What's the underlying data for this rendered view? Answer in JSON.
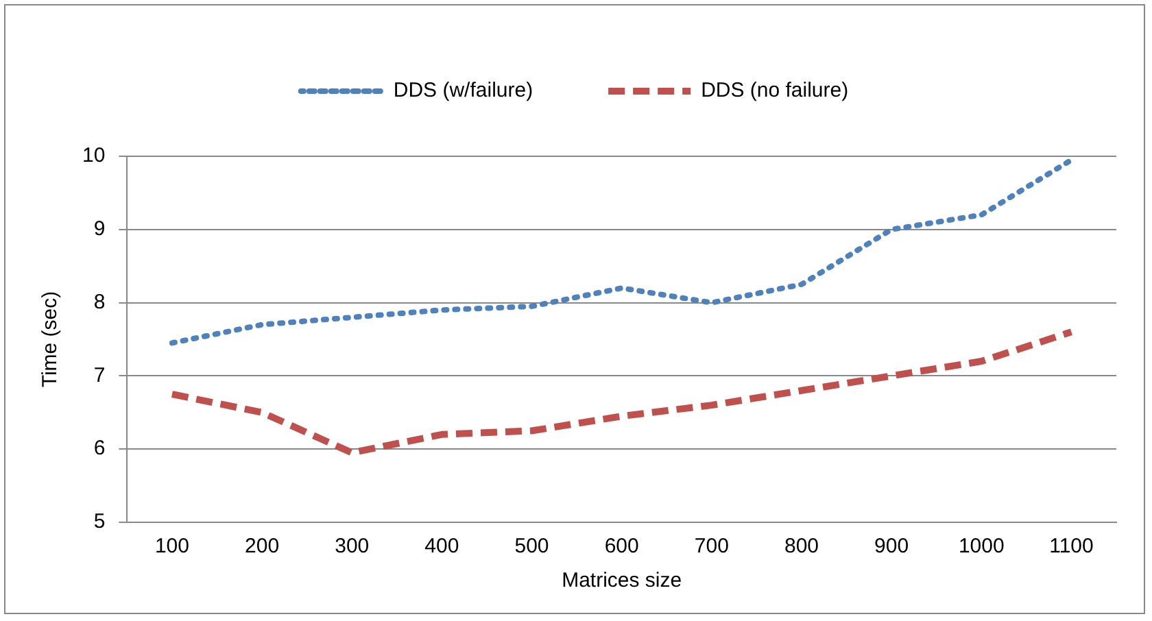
{
  "chart_data": {
    "type": "line",
    "xlabel": "Matrices size",
    "ylabel": "Time (sec)",
    "categories": [
      "100",
      "200",
      "300",
      "400",
      "500",
      "600",
      "700",
      "800",
      "900",
      "1000",
      "1100"
    ],
    "series": [
      {
        "name": "DDS (w/failure)",
        "color": "#4f81bd",
        "line_style": "dotted",
        "values": [
          7.45,
          7.7,
          7.8,
          7.9,
          7.95,
          8.2,
          8.0,
          8.25,
          9.0,
          9.2,
          9.95
        ]
      },
      {
        "name": "DDS (no failure)",
        "color": "#c0504d",
        "line_style": "dashed",
        "values": [
          6.75,
          6.5,
          5.95,
          6.2,
          6.25,
          6.45,
          6.6,
          6.8,
          7.0,
          7.2,
          7.6
        ]
      }
    ],
    "ylim": [
      5,
      10
    ],
    "yticks": [
      5,
      6,
      7,
      8,
      9,
      10
    ],
    "grid": "y",
    "legend": "top",
    "marker": "none"
  }
}
